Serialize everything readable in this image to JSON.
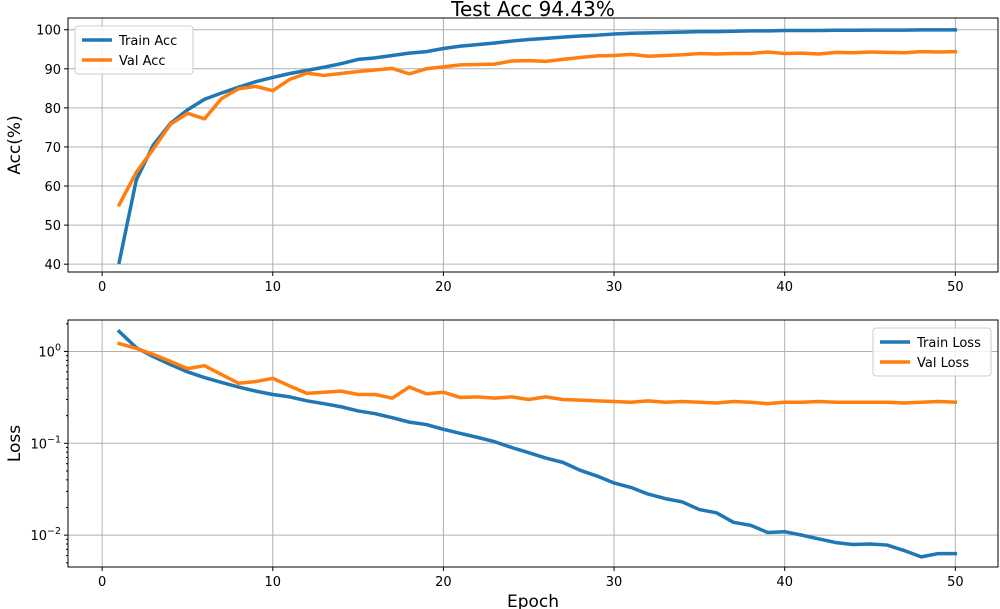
{
  "colors": {
    "train": "#1f77b4",
    "val": "#ff7f0e"
  },
  "chart_data": [
    {
      "type": "line",
      "title": "Test Acc 94.43%",
      "xlabel": "",
      "ylabel": "Acc(%)",
      "xlim": [
        -2,
        52.5
      ],
      "ylim": [
        38,
        103
      ],
      "xticks": [
        0,
        10,
        20,
        30,
        40,
        50
      ],
      "yticks": [
        40,
        50,
        60,
        70,
        80,
        90,
        100
      ],
      "grid": true,
      "yscale": "linear",
      "legend_position": "upper left",
      "x": [
        1,
        2,
        3,
        4,
        5,
        6,
        7,
        8,
        9,
        10,
        11,
        12,
        13,
        14,
        15,
        16,
        17,
        18,
        19,
        20,
        21,
        22,
        23,
        24,
        25,
        26,
        27,
        28,
        29,
        30,
        31,
        32,
        33,
        34,
        35,
        36,
        37,
        38,
        39,
        40,
        41,
        42,
        43,
        44,
        45,
        46,
        47,
        48,
        49,
        50
      ],
      "series": [
        {
          "name": "Train Acc",
          "color_key": "train",
          "values": [
            40.5,
            61.5,
            70.5,
            76,
            79.5,
            82.2,
            83.8,
            85.3,
            86.7,
            87.8,
            88.8,
            89.6,
            90.4,
            91.3,
            92.4,
            92.8,
            93.4,
            94,
            94.4,
            95.2,
            95.8,
            96.2,
            96.6,
            97.1,
            97.5,
            97.8,
            98.1,
            98.4,
            98.6,
            98.9,
            99.1,
            99.2,
            99.3,
            99.4,
            99.5,
            99.5,
            99.6,
            99.7,
            99.7,
            99.8,
            99.8,
            99.8,
            99.85,
            99.85,
            99.9,
            99.9,
            99.9,
            99.95,
            99.95,
            99.95
          ]
        },
        {
          "name": "Val Acc",
          "color_key": "val",
          "values": [
            55.2,
            63.5,
            69.5,
            75.8,
            78.6,
            77.2,
            82.4,
            84.9,
            85.5,
            84.4,
            87.3,
            88.9,
            88.3,
            88.8,
            89.3,
            89.7,
            90.1,
            88.7,
            90,
            90.5,
            91,
            91.1,
            91.2,
            92,
            92.1,
            91.9,
            92.4,
            92.9,
            93.3,
            93.4,
            93.7,
            93.2,
            93.4,
            93.6,
            93.9,
            93.8,
            93.9,
            93.9,
            94.3,
            93.9,
            94,
            93.8,
            94.2,
            94.1,
            94.3,
            94.2,
            94.1,
            94.4,
            94.3,
            94.4
          ]
        }
      ]
    },
    {
      "type": "line",
      "title": "",
      "xlabel": "Epoch",
      "ylabel": "Loss",
      "xlim": [
        -2,
        52.5
      ],
      "ylim": [
        0.0045,
        2.2
      ],
      "xticks": [
        0,
        10,
        20,
        30,
        40,
        50
      ],
      "yticks": [
        1,
        0.1,
        0.01
      ],
      "ytick_labels": [
        {
          "base": "10",
          "exp": "0"
        },
        {
          "base": "10",
          "exp": "−1"
        },
        {
          "base": "10",
          "exp": "−2"
        }
      ],
      "grid": true,
      "yscale": "log",
      "legend_position": "upper right",
      "x": [
        1,
        2,
        3,
        4,
        5,
        6,
        7,
        8,
        9,
        10,
        11,
        12,
        13,
        14,
        15,
        16,
        17,
        18,
        19,
        20,
        21,
        22,
        23,
        24,
        25,
        26,
        27,
        28,
        29,
        30,
        31,
        32,
        33,
        34,
        35,
        36,
        37,
        38,
        39,
        40,
        41,
        42,
        43,
        44,
        45,
        46,
        47,
        48,
        49,
        50
      ],
      "series": [
        {
          "name": "Train Loss",
          "color_key": "train",
          "values": [
            1.65,
            1.1,
            0.88,
            0.72,
            0.6,
            0.52,
            0.46,
            0.41,
            0.37,
            0.34,
            0.32,
            0.29,
            0.27,
            0.25,
            0.225,
            0.21,
            0.19,
            0.17,
            0.16,
            0.142,
            0.128,
            0.116,
            0.104,
            0.09,
            0.079,
            0.069,
            0.062,
            0.051,
            0.044,
            0.037,
            0.033,
            0.028,
            0.025,
            0.023,
            0.019,
            0.0175,
            0.0138,
            0.0128,
            0.0107,
            0.0109,
            0.01,
            0.0091,
            0.0083,
            0.0079,
            0.008,
            0.0078,
            0.0068,
            0.0058,
            0.0063,
            0.0063
          ]
        },
        {
          "name": "Val Loss",
          "color_key": "val",
          "values": [
            1.22,
            1.08,
            0.93,
            0.78,
            0.65,
            0.7,
            0.56,
            0.45,
            0.47,
            0.51,
            0.42,
            0.35,
            0.36,
            0.37,
            0.34,
            0.34,
            0.31,
            0.41,
            0.345,
            0.36,
            0.315,
            0.32,
            0.31,
            0.32,
            0.3,
            0.32,
            0.3,
            0.295,
            0.29,
            0.285,
            0.28,
            0.29,
            0.28,
            0.285,
            0.28,
            0.275,
            0.285,
            0.28,
            0.27,
            0.28,
            0.28,
            0.285,
            0.28,
            0.28,
            0.28,
            0.28,
            0.275,
            0.28,
            0.285,
            0.28
          ]
        }
      ]
    }
  ]
}
